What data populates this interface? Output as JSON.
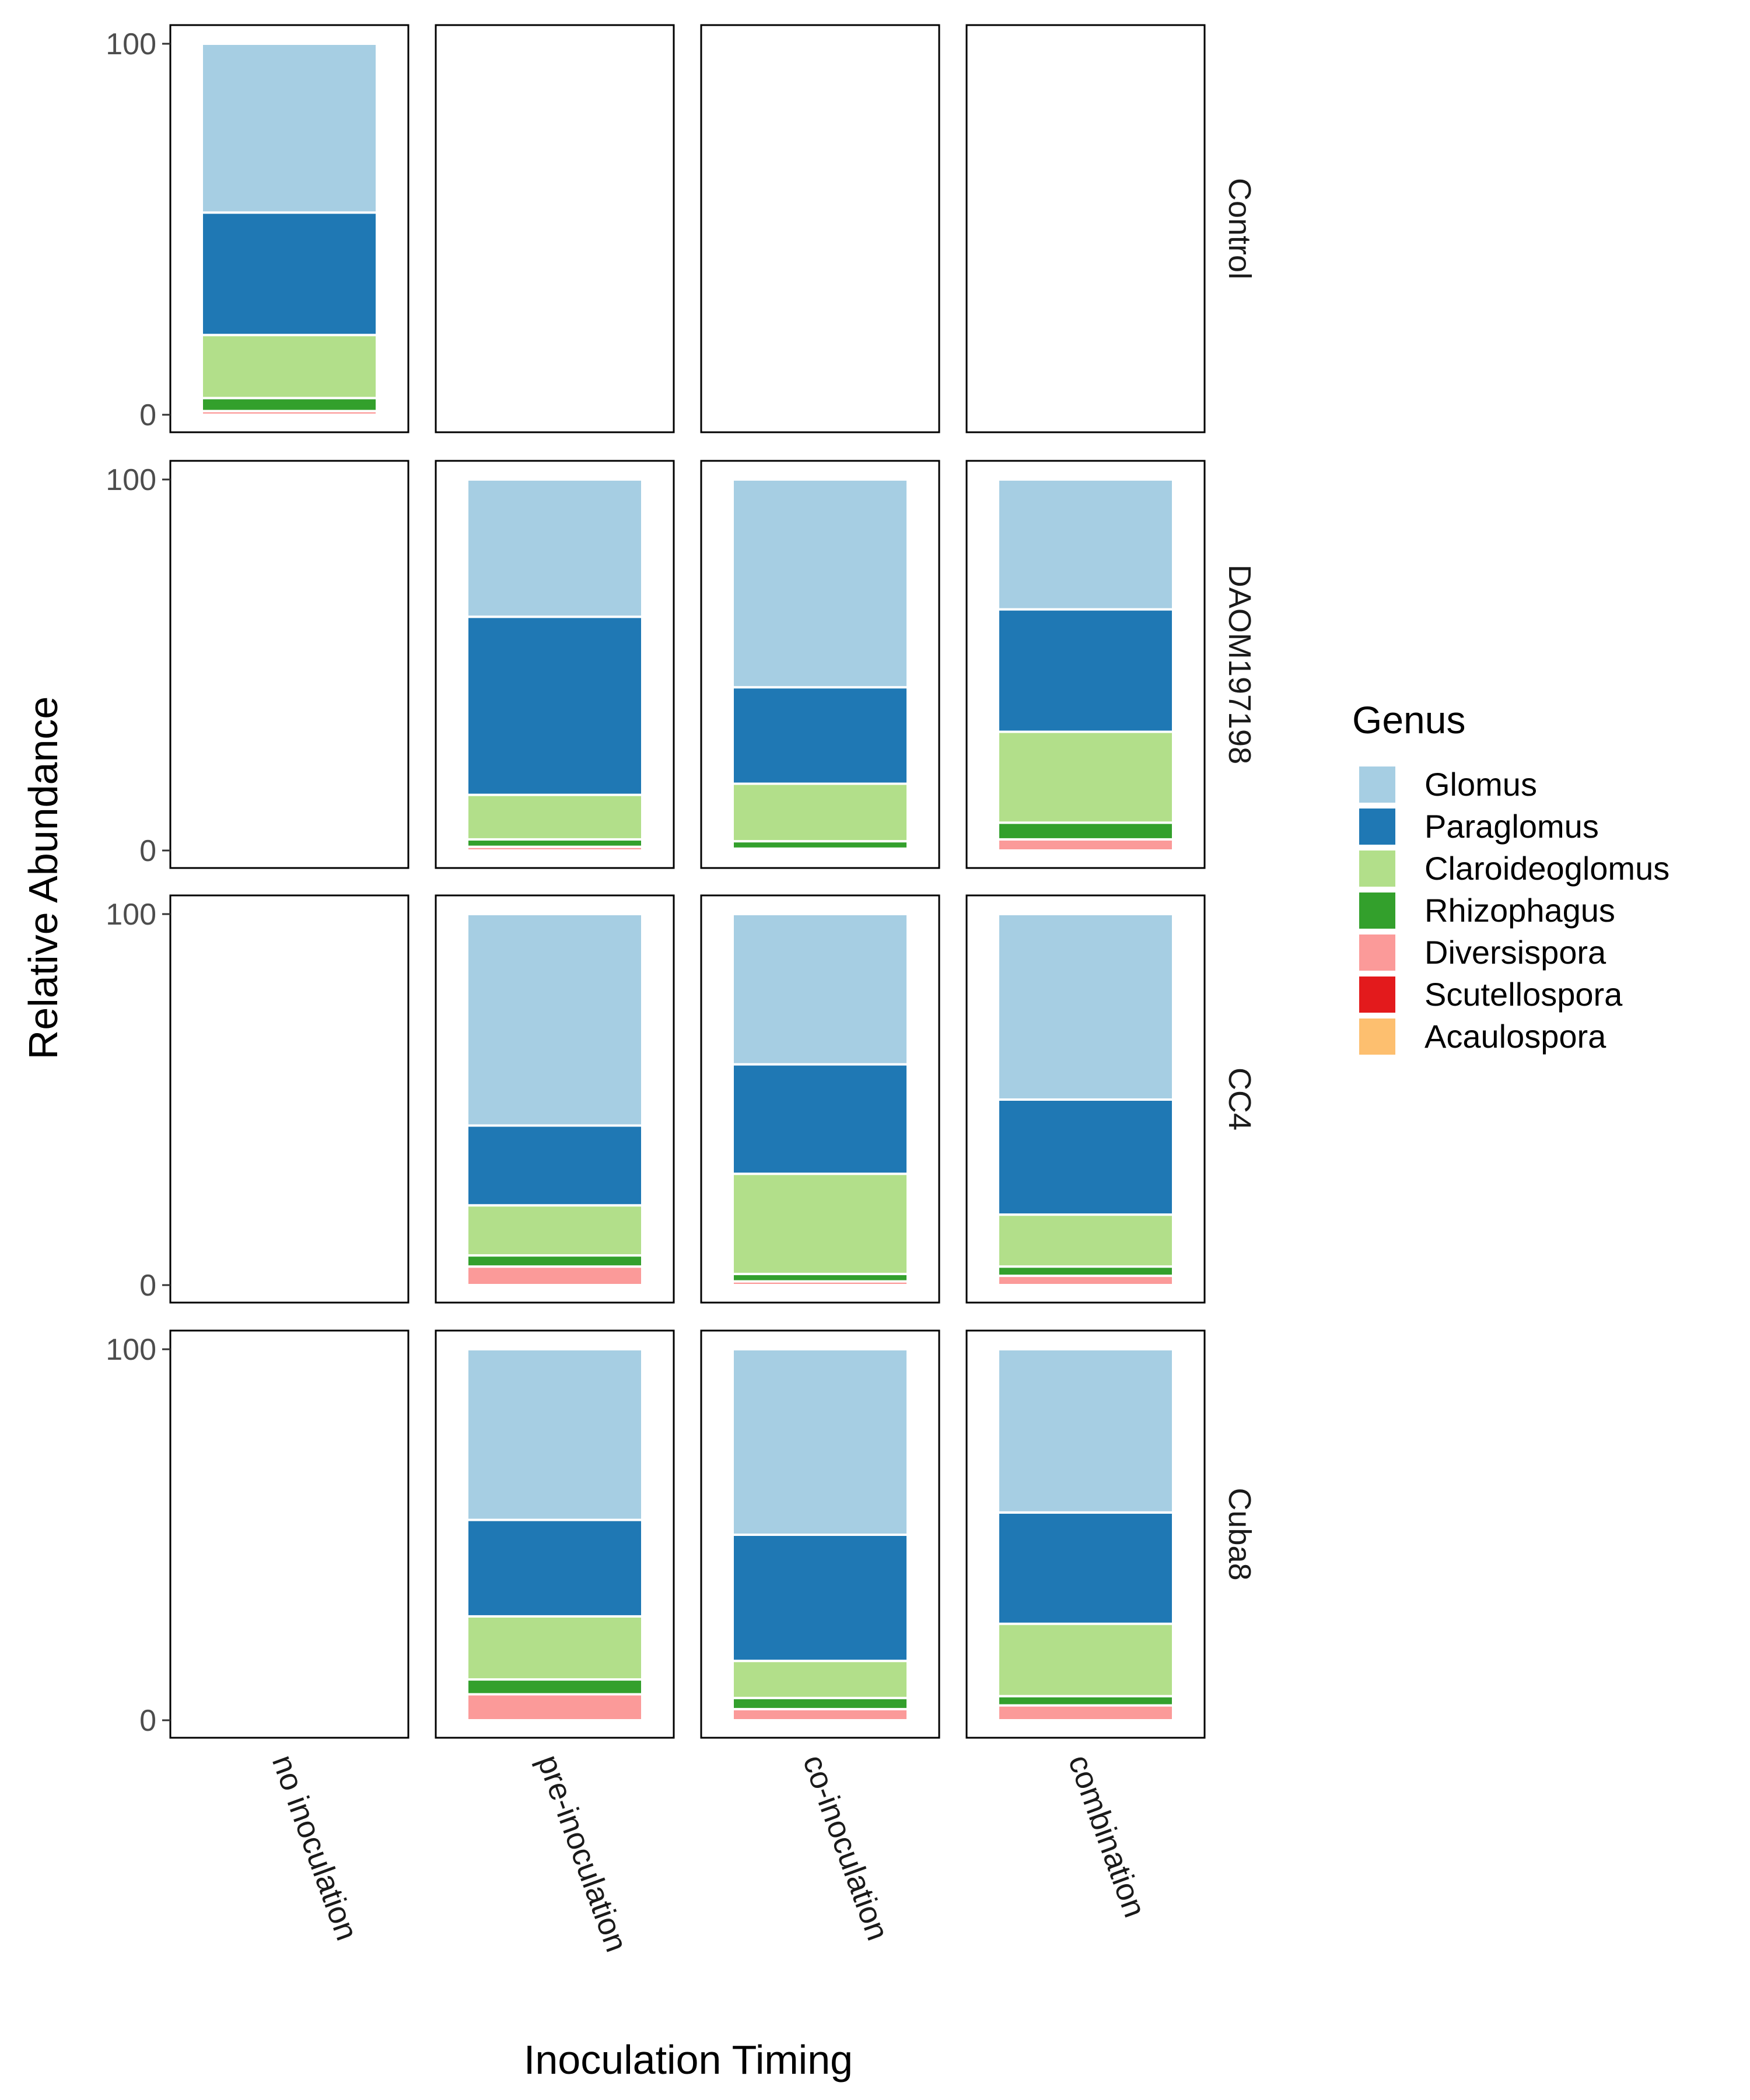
{
  "chart_data": {
    "type": "bar",
    "stacked": true,
    "xlabel": "Inoculation Timing",
    "ylabel": "Relative Abundance",
    "ylim": [
      0,
      100
    ],
    "y_ticks": [
      0,
      100
    ],
    "columns": [
      "no inoculation",
      "pre-inoculation",
      "co-inoculation",
      "combination"
    ],
    "rows": [
      "Control",
      "DAOM197198",
      "CC4",
      "Cuba8"
    ],
    "legend": {
      "title": "Genus",
      "position": "right",
      "entries": [
        {
          "name": "Glomus",
          "color": "#a6cee3"
        },
        {
          "name": "Paraglomus",
          "color": "#1f78b4"
        },
        {
          "name": "Claroideoglomus",
          "color": "#b2df8a"
        },
        {
          "name": "Rhizophagus",
          "color": "#33a02c"
        },
        {
          "name": "Diversispora",
          "color": "#fb9a99"
        },
        {
          "name": "Scutellospora",
          "color": "#e31a1c"
        },
        {
          "name": "Acaulospora",
          "color": "#fdbf6f"
        }
      ]
    },
    "stack_order_bottom_to_top": [
      "Acaulospora",
      "Scutellospora",
      "Diversispora",
      "Rhizophagus",
      "Claroideoglomus",
      "Paraglomus",
      "Glomus"
    ],
    "bars": [
      {
        "row": "Control",
        "column": "no inoculation",
        "values": {
          "Acaulospora": 0,
          "Scutellospora": 0,
          "Diversispora": 1,
          "Rhizophagus": 3.5,
          "Claroideoglomus": 17,
          "Paraglomus": 33,
          "Glomus": 45.5
        }
      },
      {
        "row": "DAOM197198",
        "column": "pre-inoculation",
        "values": {
          "Acaulospora": 0,
          "Scutellospora": 0,
          "Diversispora": 1,
          "Rhizophagus": 2,
          "Claroideoglomus": 12,
          "Paraglomus": 48,
          "Glomus": 37
        }
      },
      {
        "row": "DAOM197198",
        "column": "co-inoculation",
        "values": {
          "Acaulospora": 0,
          "Scutellospora": 0,
          "Diversispora": 0.5,
          "Rhizophagus": 2,
          "Claroideoglomus": 15.5,
          "Paraglomus": 26,
          "Glomus": 56
        }
      },
      {
        "row": "DAOM197198",
        "column": "combination",
        "values": {
          "Acaulospora": 0,
          "Scutellospora": 0,
          "Diversispora": 3,
          "Rhizophagus": 4.5,
          "Claroideoglomus": 24.5,
          "Paraglomus": 33,
          "Glomus": 35
        }
      },
      {
        "row": "CC4",
        "column": "pre-inoculation",
        "values": {
          "Acaulospora": 0,
          "Scutellospora": 0,
          "Diversispora": 5,
          "Rhizophagus": 3,
          "Claroideoglomus": 13.5,
          "Paraglomus": 21.5,
          "Glomus": 57
        }
      },
      {
        "row": "CC4",
        "column": "co-inoculation",
        "values": {
          "Acaulospora": 0,
          "Scutellospora": 0,
          "Diversispora": 1,
          "Rhizophagus": 2,
          "Claroideoglomus": 27,
          "Paraglomus": 29.5,
          "Glomus": 40.5
        }
      },
      {
        "row": "CC4",
        "column": "combination",
        "values": {
          "Acaulospora": 0,
          "Scutellospora": 0,
          "Diversispora": 2.5,
          "Rhizophagus": 2.5,
          "Claroideoglomus": 14,
          "Paraglomus": 31,
          "Glomus": 50
        }
      },
      {
        "row": "Cuba8",
        "column": "pre-inoculation",
        "values": {
          "Acaulospora": 0,
          "Scutellospora": 0,
          "Diversispora": 7,
          "Rhizophagus": 4,
          "Claroideoglomus": 17,
          "Paraglomus": 26,
          "Glomus": 46
        }
      },
      {
        "row": "Cuba8",
        "column": "co-inoculation",
        "values": {
          "Acaulospora": 0,
          "Scutellospora": 0,
          "Diversispora": 3,
          "Rhizophagus": 3,
          "Claroideoglomus": 10,
          "Paraglomus": 34,
          "Glomus": 50
        }
      },
      {
        "row": "Cuba8",
        "column": "combination",
        "values": {
          "Acaulospora": 0,
          "Scutellospora": 0,
          "Diversispora": 4,
          "Rhizophagus": 2.5,
          "Claroideoglomus": 19.5,
          "Paraglomus": 30,
          "Glomus": 44
        }
      }
    ]
  }
}
